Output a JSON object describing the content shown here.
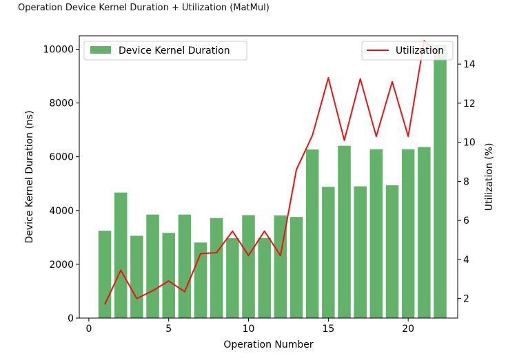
{
  "page": {
    "title": "Operation Device Kernel Duration + Utilization (MatMul)"
  },
  "chart_data": {
    "type": "bar+line",
    "x": [
      1,
      2,
      3,
      4,
      5,
      6,
      7,
      8,
      9,
      10,
      11,
      12,
      13,
      14,
      15,
      16,
      17,
      18,
      19,
      20,
      21,
      22
    ],
    "xlabel": "Operation Number",
    "xlim": [
      -0.6,
      23.1
    ],
    "xticks": [
      0,
      5,
      10,
      15,
      20
    ],
    "series": [
      {
        "name": "Device Kernel Duration",
        "type": "bar",
        "axis": "left",
        "color": "#62b26a",
        "values": [
          3250,
          4670,
          3060,
          3850,
          3170,
          3850,
          2810,
          3720,
          2970,
          3830,
          2980,
          3820,
          3760,
          6270,
          4880,
          6410,
          4900,
          6280,
          4940,
          6280,
          6360,
          10160
        ]
      },
      {
        "name": "Utilization",
        "type": "line",
        "axis": "right",
        "color": "#ee1111",
        "values": [
          1.7,
          3.45,
          2.0,
          2.4,
          2.9,
          2.35,
          4.3,
          4.35,
          5.45,
          4.2,
          5.45,
          4.2,
          8.6,
          10.35,
          13.3,
          10.1,
          13.25,
          10.3,
          13.1,
          10.3,
          15.2,
          14.4
        ]
      }
    ],
    "y_left": {
      "label": "Device Kernel Duration (ns)",
      "lim": [
        0,
        10500
      ],
      "ticks": [
        0,
        2000,
        4000,
        6000,
        8000,
        10000
      ]
    },
    "y_right": {
      "label": "Utilization (%)",
      "lim": [
        1.0,
        15.45
      ],
      "ticks": [
        2,
        4,
        6,
        8,
        10,
        12,
        14
      ]
    },
    "legends": [
      {
        "placement": "top-left",
        "entries": [
          "Device Kernel Duration"
        ]
      },
      {
        "placement": "top-right",
        "entries": [
          "Utilization"
        ]
      }
    ],
    "grid": false
  }
}
